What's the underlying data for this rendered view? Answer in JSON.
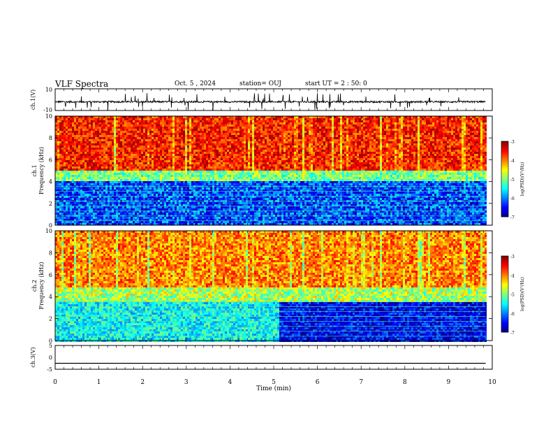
{
  "header": {
    "title": "VLF Spectra",
    "date": "Oct. 5 , 2024",
    "station": "station= OUJ",
    "start": "start  UT  =   2 : 50: 0"
  },
  "chart_data": [
    {
      "type": "line",
      "panel": "ch1-waveform",
      "ylabel": "ch.1(V)",
      "ylim": [
        -10,
        10
      ],
      "yticks": [
        "10",
        "-10"
      ],
      "xlim": [
        0,
        10
      ],
      "series": [
        {
          "values_note": "",
          "baseline": -2,
          "spike_min": -10,
          "spike_max": 10
        }
      ]
    },
    {
      "type": "heatmap",
      "panel": "ch1-spectrogram",
      "ylabel": "ch.1\nFrequency (kHz)",
      "ylim": [
        0,
        10
      ],
      "yticks": [
        "0",
        "2",
        "4",
        "6",
        "8",
        "10"
      ],
      "xlim": [
        0,
        9.85
      ],
      "colorbar": {
        "label": "log(PSD)(V²/Hz)",
        "range": [
          -7,
          -3
        ],
        "ticks": [
          "-3",
          "-4",
          "-5",
          "-6",
          "-7"
        ]
      },
      "bands": [
        {
          "freq_range_khz": [
            0,
            4
          ],
          "log_psd": -6.2
        },
        {
          "freq_range_khz": [
            4,
            5
          ],
          "log_psd": -5.0
        },
        {
          "freq_range_khz": [
            5,
            10
          ],
          "log_psd": -3.5
        }
      ]
    },
    {
      "type": "heatmap",
      "panel": "ch2-spectrogram",
      "ylabel": "ch.2\nFrequency (kHz)",
      "ylim": [
        0,
        10
      ],
      "yticks": [
        "0",
        "2",
        "4",
        "6",
        "8",
        "10"
      ],
      "xlim": [
        0,
        9.85
      ],
      "colorbar": {
        "label": "log(PSD)(V²/Hz)",
        "range": [
          -7,
          -3
        ],
        "ticks": [
          "-3",
          "-4",
          "-5",
          "-6",
          "-7"
        ]
      },
      "segments": [
        {
          "time_min": [
            0,
            5.1
          ],
          "low_band_khz": [
            0,
            3.5
          ],
          "low_log_psd": -5.5
        },
        {
          "time_min": [
            5.1,
            9.85
          ],
          "low_band_khz": [
            0,
            3.5
          ],
          "low_log_psd": -6.5
        }
      ],
      "upper_log_psd": -4.0
    },
    {
      "type": "line",
      "panel": "ch3-waveform",
      "ylabel": "ch.3(V)",
      "ylim": [
        -5,
        5
      ],
      "yticks": [
        "5",
        "0",
        "-5"
      ],
      "xlim": [
        0,
        10
      ],
      "series": [
        {
          "constant": -2.5
        }
      ]
    }
  ],
  "xaxis": {
    "label": "Time (min)",
    "ticks": [
      "0",
      "1",
      "2",
      "3",
      "4",
      "5",
      "6",
      "7",
      "8",
      "9",
      "10"
    ]
  }
}
